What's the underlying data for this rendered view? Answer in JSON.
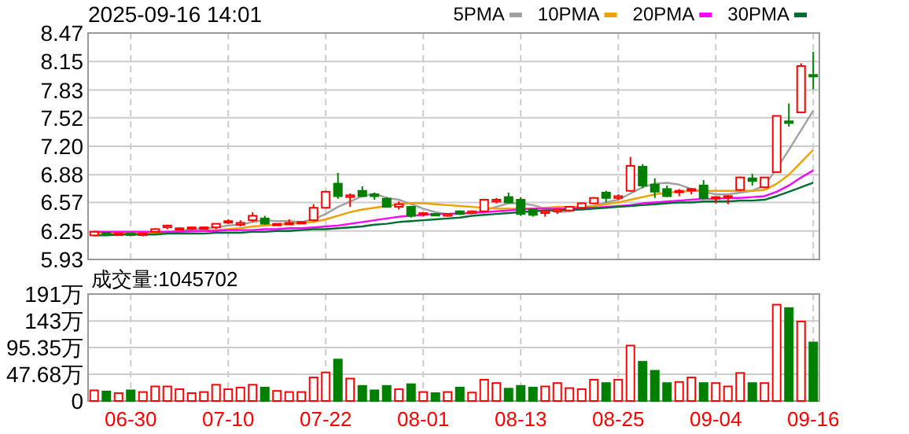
{
  "chart_data": [
    {
      "type": "candlestick",
      "title": "2025-09-16 14:01",
      "legend": "top right",
      "grid": true,
      "tick_labels": "y",
      "categories": [
        null,
        null,
        null,
        null,
        null,
        null,
        null,
        null,
        null,
        null,
        null,
        null,
        null,
        null,
        null,
        null,
        null,
        null,
        null,
        null,
        null,
        null,
        null,
        null,
        null,
        null,
        null,
        null,
        null,
        null,
        null,
        null,
        null,
        null,
        null,
        null,
        null,
        null,
        null,
        null,
        null,
        null,
        null,
        null,
        null,
        null,
        null,
        null,
        null,
        null,
        null,
        null,
        null,
        null,
        null,
        null,
        null,
        null,
        null,
        null
      ],
      "ohlc": [
        [
          6.2,
          6.25,
          6.19,
          6.24
        ],
        [
          6.23,
          6.23,
          6.2,
          6.21
        ],
        [
          6.21,
          6.22,
          6.2,
          6.22
        ],
        [
          6.22,
          6.23,
          6.2,
          6.21
        ],
        [
          6.21,
          6.22,
          6.19,
          6.22
        ],
        [
          6.24,
          6.28,
          6.23,
          6.27
        ],
        [
          6.29,
          6.32,
          6.27,
          6.31
        ],
        [
          6.27,
          6.29,
          6.26,
          6.28
        ],
        [
          6.28,
          6.3,
          6.27,
          6.29
        ],
        [
          6.28,
          6.3,
          6.27,
          6.29
        ],
        [
          6.29,
          6.33,
          6.27,
          6.33
        ],
        [
          6.36,
          6.38,
          6.33,
          6.35
        ],
        [
          6.32,
          6.37,
          6.3,
          6.34
        ],
        [
          6.37,
          6.46,
          6.35,
          6.42
        ],
        [
          6.39,
          6.42,
          6.32,
          6.33
        ],
        [
          6.32,
          6.33,
          6.31,
          6.33
        ],
        [
          6.33,
          6.38,
          6.32,
          6.34
        ],
        [
          6.34,
          6.36,
          6.33,
          6.35
        ],
        [
          6.37,
          6.55,
          6.36,
          6.51
        ],
        [
          6.51,
          6.7,
          6.5,
          6.69
        ],
        [
          6.78,
          6.9,
          6.61,
          6.64
        ],
        [
          6.63,
          6.67,
          6.52,
          6.65
        ],
        [
          6.7,
          6.75,
          6.63,
          6.64
        ],
        [
          6.66,
          6.68,
          6.6,
          6.64
        ],
        [
          6.61,
          6.63,
          6.51,
          6.52
        ],
        [
          6.52,
          6.58,
          6.49,
          6.55
        ],
        [
          6.52,
          6.53,
          6.4,
          6.42
        ],
        [
          6.44,
          6.46,
          6.41,
          6.45
        ],
        [
          6.44,
          6.45,
          6.42,
          6.43
        ],
        [
          6.42,
          6.45,
          6.41,
          6.44
        ],
        [
          6.47,
          6.48,
          6.43,
          6.44
        ],
        [
          6.45,
          6.48,
          6.44,
          6.47
        ],
        [
          6.47,
          6.61,
          6.46,
          6.6
        ],
        [
          6.58,
          6.62,
          6.56,
          6.6
        ],
        [
          6.63,
          6.68,
          6.56,
          6.57
        ],
        [
          6.6,
          6.63,
          6.42,
          6.44
        ],
        [
          6.49,
          6.5,
          6.41,
          6.43
        ],
        [
          6.45,
          6.48,
          6.41,
          6.47
        ],
        [
          6.47,
          6.49,
          6.44,
          6.49
        ],
        [
          6.48,
          6.53,
          6.47,
          6.52
        ],
        [
          6.51,
          6.57,
          6.5,
          6.56
        ],
        [
          6.56,
          6.63,
          6.55,
          6.62
        ],
        [
          6.68,
          6.7,
          6.57,
          6.62
        ],
        [
          6.62,
          6.66,
          6.6,
          6.64
        ],
        [
          6.7,
          7.08,
          6.69,
          6.98
        ],
        [
          6.97,
          7.0,
          6.73,
          6.76
        ],
        [
          6.77,
          6.84,
          6.62,
          6.69
        ],
        [
          6.72,
          6.76,
          6.63,
          6.64
        ],
        [
          6.69,
          6.72,
          6.64,
          6.7
        ],
        [
          6.71,
          6.73,
          6.66,
          6.72
        ],
        [
          6.76,
          6.82,
          6.6,
          6.62
        ],
        [
          6.62,
          6.64,
          6.56,
          6.63
        ],
        [
          6.63,
          6.65,
          6.55,
          6.64
        ],
        [
          6.71,
          6.86,
          6.7,
          6.85
        ],
        [
          6.84,
          6.89,
          6.76,
          6.81
        ],
        [
          6.74,
          6.85,
          6.73,
          6.85
        ],
        [
          6.91,
          7.54,
          6.9,
          7.54
        ],
        [
          7.48,
          7.68,
          7.42,
          7.46
        ],
        [
          7.58,
          8.13,
          7.58,
          8.1
        ],
        [
          8.0,
          8.26,
          7.84,
          7.99
        ]
      ],
      "colors": [
        "#ff0000",
        "#008000",
        "#ff0000",
        "#008000",
        "#ff0000",
        "#ff0000",
        "#ff0000",
        "#ff0000",
        "#ff0000",
        "#ff0000",
        "#ff0000",
        "#ff0000",
        "#ff0000",
        "#ff0000",
        "#008000",
        "#ff0000",
        "#ff0000",
        "#ff0000",
        "#ff0000",
        "#ff0000",
        "#008000",
        "#ff0000",
        "#008000",
        "#008000",
        "#008000",
        "#ff0000",
        "#008000",
        "#ff0000",
        "#008000",
        "#ff0000",
        "#008000",
        "#ff0000",
        "#ff0000",
        "#ff0000",
        "#008000",
        "#008000",
        "#008000",
        "#ff0000",
        "#ff0000",
        "#ff0000",
        "#ff0000",
        "#ff0000",
        "#008000",
        "#ff0000",
        "#ff0000",
        "#008000",
        "#008000",
        "#008000",
        "#ff0000",
        "#ff0000",
        "#008000",
        "#ff0000",
        "#ff0000",
        "#ff0000",
        "#008000",
        "#ff0000",
        "#ff0000",
        "#008000",
        "#ff0000",
        "#008000"
      ],
      "series": [
        {
          "name": "5PMA",
          "type": "line",
          "color": "#a0a0a0",
          "values": [
            6.22,
            6.22,
            6.22,
            6.22,
            6.22,
            6.23,
            6.24,
            6.25,
            6.27,
            6.28,
            6.29,
            6.31,
            6.32,
            6.35,
            6.37,
            6.36,
            6.36,
            6.35,
            6.38,
            6.44,
            6.52,
            6.58,
            6.64,
            6.67,
            6.62,
            6.6,
            6.55,
            6.5,
            6.46,
            6.44,
            6.44,
            6.45,
            6.48,
            6.52,
            6.56,
            6.56,
            6.54,
            6.5,
            6.46,
            6.47,
            6.5,
            6.53,
            6.57,
            6.6,
            6.67,
            6.74,
            6.78,
            6.79,
            6.77,
            6.72,
            6.69,
            6.66,
            6.66,
            6.68,
            6.7,
            6.76,
            6.95,
            7.16,
            7.38,
            7.6
          ]
        },
        {
          "name": "10PMA",
          "type": "line",
          "color": "#f0a000",
          "values": [
            6.22,
            6.22,
            6.22,
            6.22,
            6.22,
            6.22,
            6.23,
            6.23,
            6.24,
            6.25,
            6.26,
            6.27,
            6.28,
            6.3,
            6.31,
            6.32,
            6.33,
            6.34,
            6.35,
            6.38,
            6.42,
            6.46,
            6.49,
            6.51,
            6.53,
            6.55,
            6.56,
            6.56,
            6.55,
            6.54,
            6.53,
            6.52,
            6.51,
            6.5,
            6.5,
            6.5,
            6.5,
            6.51,
            6.52,
            6.52,
            6.52,
            6.53,
            6.55,
            6.57,
            6.6,
            6.63,
            6.66,
            6.68,
            6.69,
            6.7,
            6.7,
            6.7,
            6.7,
            6.7,
            6.7,
            6.71,
            6.78,
            6.88,
            7.02,
            7.16
          ]
        },
        {
          "name": "20PMA",
          "type": "line",
          "color": "#ff00ff",
          "values": [
            6.24,
            6.24,
            6.24,
            6.24,
            6.24,
            6.24,
            6.24,
            6.24,
            6.25,
            6.25,
            6.25,
            6.26,
            6.26,
            6.26,
            6.27,
            6.27,
            6.28,
            6.28,
            6.29,
            6.3,
            6.31,
            6.33,
            6.35,
            6.37,
            6.39,
            6.41,
            6.42,
            6.43,
            6.44,
            6.44,
            6.45,
            6.45,
            6.46,
            6.47,
            6.48,
            6.49,
            6.5,
            6.5,
            6.5,
            6.5,
            6.51,
            6.51,
            6.52,
            6.53,
            6.54,
            6.56,
            6.57,
            6.58,
            6.59,
            6.6,
            6.61,
            6.61,
            6.62,
            6.62,
            6.63,
            6.64,
            6.69,
            6.76,
            6.85,
            6.93
          ]
        },
        {
          "name": "30PMA",
          "type": "line",
          "color": "#006e32",
          "values": [
            6.2,
            6.2,
            6.21,
            6.21,
            6.21,
            6.21,
            6.22,
            6.22,
            6.22,
            6.22,
            6.23,
            6.23,
            6.23,
            6.24,
            6.24,
            6.25,
            6.25,
            6.26,
            6.27,
            6.27,
            6.28,
            6.29,
            6.3,
            6.32,
            6.33,
            6.35,
            6.36,
            6.37,
            6.38,
            6.39,
            6.4,
            6.42,
            6.43,
            6.44,
            6.45,
            6.46,
            6.47,
            6.48,
            6.48,
            6.49,
            6.49,
            6.5,
            6.51,
            6.52,
            6.53,
            6.54,
            6.55,
            6.56,
            6.57,
            6.57,
            6.58,
            6.58,
            6.58,
            6.59,
            6.59,
            6.6,
            6.64,
            6.69,
            6.74,
            6.79
          ]
        }
      ],
      "ylim": [
        5.93,
        8.47
      ],
      "yticks": [
        5.93,
        6.25,
        6.57,
        6.88,
        {
          "value": 7.2,
          "label": "7.20"
        },
        7.52,
        7.83,
        8.15,
        8.47
      ]
    },
    {
      "type": "bar",
      "title": "成交量:1045702",
      "grid": true,
      "categories": [
        null,
        null,
        null,
        "06-30",
        null,
        null,
        null,
        null,
        null,
        null,
        null,
        "07-10",
        null,
        null,
        null,
        null,
        null,
        null,
        null,
        "07-22",
        null,
        null,
        null,
        null,
        null,
        null,
        null,
        "08-01",
        null,
        null,
        null,
        null,
        null,
        null,
        null,
        "08-13",
        null,
        null,
        null,
        null,
        null,
        null,
        null,
        "08-25",
        null,
        null,
        null,
        null,
        null,
        null,
        null,
        "09-04",
        null,
        null,
        null,
        null,
        null,
        null,
        null,
        "09-16"
      ],
      "values": [
        19,
        17,
        14,
        19,
        16,
        26,
        26,
        21,
        14,
        16,
        29,
        21,
        24,
        29,
        24,
        18,
        16,
        16,
        42,
        51,
        74,
        40,
        27,
        19,
        27,
        21,
        30,
        16,
        14,
        16,
        24,
        15,
        38,
        32,
        22,
        27,
        24,
        26,
        32,
        23,
        21,
        38,
        32,
        38,
        99,
        70,
        54,
        32,
        34,
        42,
        32,
        32,
        26,
        50,
        32,
        32,
        172,
        166,
        142,
        104.57
      ],
      "colors": [
        "#ff0000",
        "#008000",
        "#ff0000",
        "#008000",
        "#ff0000",
        "#ff0000",
        "#ff0000",
        "#ff0000",
        "#ff0000",
        "#ff0000",
        "#ff0000",
        "#ff0000",
        "#ff0000",
        "#ff0000",
        "#008000",
        "#ff0000",
        "#ff0000",
        "#ff0000",
        "#ff0000",
        "#ff0000",
        "#008000",
        "#ff0000",
        "#008000",
        "#008000",
        "#008000",
        "#ff0000",
        "#008000",
        "#ff0000",
        "#008000",
        "#ff0000",
        "#008000",
        "#ff0000",
        "#ff0000",
        "#ff0000",
        "#008000",
        "#008000",
        "#008000",
        "#ff0000",
        "#ff0000",
        "#ff0000",
        "#ff0000",
        "#ff0000",
        "#008000",
        "#ff0000",
        "#ff0000",
        "#008000",
        "#008000",
        "#008000",
        "#ff0000",
        "#ff0000",
        "#008000",
        "#ff0000",
        "#ff0000",
        "#ff0000",
        "#008000",
        "#ff0000",
        "#ff0000",
        "#008000",
        "#ff0000",
        "#008000"
      ],
      "ylim": [
        0,
        191
      ],
      "yticks": [
        0,
        {
          "value": 47.68,
          "label": "47.68万"
        },
        {
          "value": 95.35,
          "label": "95.35万"
        },
        {
          "value": 143,
          "label": "143万"
        },
        {
          "value": 191,
          "label": "191万"
        }
      ]
    }
  ]
}
